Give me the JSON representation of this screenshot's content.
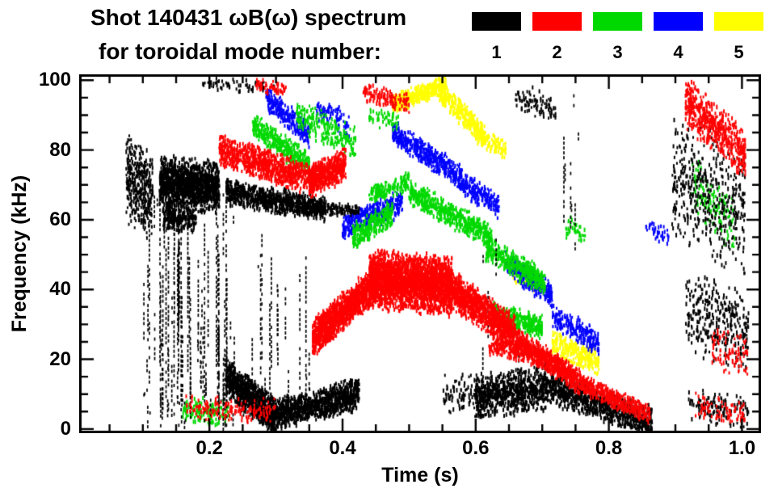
{
  "chart_data": {
    "type": "scatter",
    "title": "Shot 140431 ωB(ω) spectrum",
    "subtitle": "for toroidal mode number:",
    "xlabel": "Time (s)",
    "ylabel": "Frequency (kHz)",
    "xlim": [
      0.008,
      1.025
    ],
    "ylim": [
      -0.5,
      101
    ],
    "xticks": [
      0.2,
      0.4,
      0.6,
      0.8,
      1.0
    ],
    "xtick_labels": [
      "0.2",
      "0.4",
      "0.6",
      "0.8",
      "1.0"
    ],
    "yticks": [
      0,
      20,
      40,
      60,
      80,
      100
    ],
    "x_minor_step": 0.05,
    "y_minor_step": 5,
    "grid": false,
    "legend_position": "top-right",
    "legend": [
      {
        "label": "1",
        "color": "#000000"
      },
      {
        "label": "2",
        "color": "#ff0000"
      },
      {
        "label": "3",
        "color": "#00d900"
      },
      {
        "label": "4",
        "color": "#0000ff"
      },
      {
        "label": "5",
        "color": "#ffff00"
      }
    ],
    "draw_order": [
      4,
      3,
      2,
      0,
      1
    ],
    "series": [
      {
        "name": "n=1",
        "color": "#000000",
        "clusters": [
          {
            "t": [
              0.075,
              0.115
            ],
            "f": [
              72,
              66
            ],
            "h": 14,
            "n": 350
          },
          {
            "style": "streaks",
            "t": [
              0.1,
              0.175
            ],
            "f": [
              0,
              78
            ],
            "n": 55
          },
          {
            "t": [
              0.125,
              0.215
            ],
            "f": [
              71,
              69
            ],
            "h": 8,
            "n": 1400
          },
          {
            "t": [
              0.13,
              0.18
            ],
            "f": [
              61,
              60
            ],
            "h": 4,
            "n": 250
          },
          {
            "style": "streaks",
            "t": [
              0.18,
              0.24
            ],
            "f": [
              0,
              70
            ],
            "n": 35
          },
          {
            "style": "streaks",
            "t": [
              0.25,
              0.35
            ],
            "f": [
              0,
              62
            ],
            "n": 18
          },
          {
            "t": [
              0.225,
              0.375
            ],
            "f": [
              68,
              63
            ],
            "h": 4,
            "n": 900
          },
          {
            "t": [
              0.35,
              0.425
            ],
            "f": [
              63,
              63
            ],
            "h": 2,
            "n": 150
          },
          {
            "t": [
              0.225,
              0.3
            ],
            "f": [
              15,
              3
            ],
            "h": 6,
            "n": 1000
          },
          {
            "t": [
              0.3,
              0.425
            ],
            "f": [
              4,
              10
            ],
            "h": 5,
            "n": 1000
          },
          {
            "t": [
              0.19,
              0.3
            ],
            "f": [
              99,
              98
            ],
            "h": 2,
            "n": 60
          },
          {
            "t": [
              0.55,
              0.62
            ],
            "f": [
              10,
              10
            ],
            "h": 7,
            "n": 120
          },
          {
            "t": [
              0.6,
              0.71
            ],
            "f": [
              9,
              12
            ],
            "h": 7,
            "n": 800
          },
          {
            "t": [
              0.71,
              0.865
            ],
            "f": [
              12,
              2
            ],
            "h": 5,
            "n": 900
          },
          {
            "style": "streaks",
            "t": [
              0.73,
              0.755
            ],
            "f": [
              50,
              100
            ],
            "n": 7
          },
          {
            "t": [
              0.66,
              0.72
            ],
            "f": [
              95,
              92
            ],
            "h": 5,
            "n": 90
          },
          {
            "style": "streaks",
            "t": [
              0.6,
              0.67
            ],
            "f": [
              15,
              60
            ],
            "n": 8
          },
          {
            "t": [
              0.895,
              1.005
            ],
            "f": [
              72,
              62
            ],
            "h": 20,
            "n": 450
          },
          {
            "t": [
              0.915,
              1.01
            ],
            "f": [
              34,
              28
            ],
            "h": 13,
            "n": 320
          },
          {
            "t": [
              0.92,
              1.01
            ],
            "f": [
              7,
              5
            ],
            "h": 5,
            "n": 130
          }
        ]
      },
      {
        "name": "n=2",
        "color": "#ff0000",
        "clusters": [
          {
            "t": [
              0.215,
              0.36
            ],
            "f": [
              80,
              71
            ],
            "h": 5,
            "n": 900
          },
          {
            "t": [
              0.35,
              0.405
            ],
            "f": [
              71,
              76
            ],
            "h": 5,
            "n": 550
          },
          {
            "t": [
              0.27,
              0.315
            ],
            "f": [
              99,
              97
            ],
            "h": 2,
            "n": 60
          },
          {
            "t": [
              0.355,
              0.455
            ],
            "f": [
              26,
              43
            ],
            "h": 6,
            "n": 1400
          },
          {
            "t": [
              0.44,
              0.565
            ],
            "f": [
              43,
              41
            ],
            "h": 9,
            "n": 2600
          },
          {
            "t": [
              0.565,
              0.66
            ],
            "f": [
              40,
              27
            ],
            "h": 6,
            "n": 1100
          },
          {
            "t": [
              0.66,
              0.76
            ],
            "f": [
              26,
              13
            ],
            "h": 4,
            "n": 650
          },
          {
            "t": [
              0.76,
              0.862
            ],
            "f": [
              13,
              4
            ],
            "h": 3,
            "n": 450
          },
          {
            "t": [
              0.62,
              0.73
            ],
            "f": [
              24,
              19
            ],
            "h": 3,
            "n": 280
          },
          {
            "t": [
              0.43,
              0.5
            ],
            "f": [
              97,
              93
            ],
            "h": 3,
            "n": 130
          },
          {
            "t": [
              0.915,
              1.005
            ],
            "f": [
              94,
              79
            ],
            "h": 8,
            "n": 550
          },
          {
            "t": [
              0.955,
              1.01
            ],
            "f": [
              24,
              20
            ],
            "h": 7,
            "n": 90
          },
          {
            "t": [
              0.93,
              1.005
            ],
            "f": [
              7,
              4
            ],
            "h": 4,
            "n": 90
          },
          {
            "t": [
              0.165,
              0.3
            ],
            "f": [
              6,
              5
            ],
            "h": 4,
            "n": 160
          }
        ]
      },
      {
        "name": "n=3",
        "color": "#00d900",
        "clusters": [
          {
            "t": [
              0.265,
              0.35
            ],
            "f": [
              87,
              76
            ],
            "h": 4,
            "n": 380
          },
          {
            "t": [
              0.33,
              0.42
            ],
            "f": [
              90,
              82
            ],
            "h": 5,
            "n": 220
          },
          {
            "t": [
              0.415,
              0.475
            ],
            "f": [
              55,
              62
            ],
            "h": 4,
            "n": 320
          },
          {
            "t": [
              0.44,
              0.5
            ],
            "f": [
              67,
              71
            ],
            "h": 3,
            "n": 160
          },
          {
            "t": [
              0.5,
              0.625
            ],
            "f": [
              68,
              55
            ],
            "h": 4,
            "n": 550
          },
          {
            "t": [
              0.615,
              0.705
            ],
            "f": [
              52,
              42
            ],
            "h": 4,
            "n": 420
          },
          {
            "t": [
              0.625,
              0.7
            ],
            "f": [
              33,
              29
            ],
            "h": 4,
            "n": 320
          },
          {
            "t": [
              0.16,
              0.23
            ],
            "f": [
              6,
              4
            ],
            "h": 4,
            "n": 140
          },
          {
            "t": [
              0.925,
              0.99
            ],
            "f": [
              70,
              58
            ],
            "h": 9,
            "n": 130
          },
          {
            "t": [
              0.44,
              0.485
            ],
            "f": [
              90,
              88
            ],
            "h": 3,
            "n": 50
          },
          {
            "t": [
              0.735,
              0.765
            ],
            "f": [
              58,
              55
            ],
            "h": 4,
            "n": 40
          }
        ]
      },
      {
        "name": "n=4",
        "color": "#0000ff",
        "clusters": [
          {
            "t": [
              0.285,
              0.35
            ],
            "f": [
              95,
              84
            ],
            "h": 4,
            "n": 280
          },
          {
            "t": [
              0.36,
              0.41
            ],
            "f": [
              92,
              87
            ],
            "h": 4,
            "n": 90
          },
          {
            "t": [
              0.4,
              0.49
            ],
            "f": [
              58,
              65
            ],
            "h": 4,
            "n": 380
          },
          {
            "t": [
              0.475,
              0.58
            ],
            "f": [
              85,
              72
            ],
            "h": 4,
            "n": 480
          },
          {
            "t": [
              0.575,
              0.635
            ],
            "f": [
              71,
              64
            ],
            "h": 4,
            "n": 220
          },
          {
            "t": [
              0.645,
              0.715
            ],
            "f": [
              48,
              38
            ],
            "h": 4,
            "n": 320
          },
          {
            "t": [
              0.715,
              0.785
            ],
            "f": [
              32,
              25
            ],
            "h": 4,
            "n": 220
          },
          {
            "t": [
              0.855,
              0.89
            ],
            "f": [
              58,
              55
            ],
            "h": 3,
            "n": 40
          }
        ]
      },
      {
        "name": "n=5",
        "color": "#ffff00",
        "clusters": [
          {
            "t": [
              0.475,
              0.555
            ],
            "f": [
              93,
              99
            ],
            "h": 3,
            "n": 420
          },
          {
            "t": [
              0.545,
              0.615
            ],
            "f": [
              97,
              84
            ],
            "h": 4,
            "n": 300
          },
          {
            "t": [
              0.6,
              0.645
            ],
            "f": [
              84,
              80
            ],
            "h": 3,
            "n": 110
          },
          {
            "t": [
              0.715,
              0.785
            ],
            "f": [
              25,
              19
            ],
            "h": 4,
            "n": 260
          },
          {
            "t": [
              0.655,
              0.695
            ],
            "f": [
              45,
              42
            ],
            "h": 3,
            "n": 60
          }
        ]
      }
    ]
  }
}
